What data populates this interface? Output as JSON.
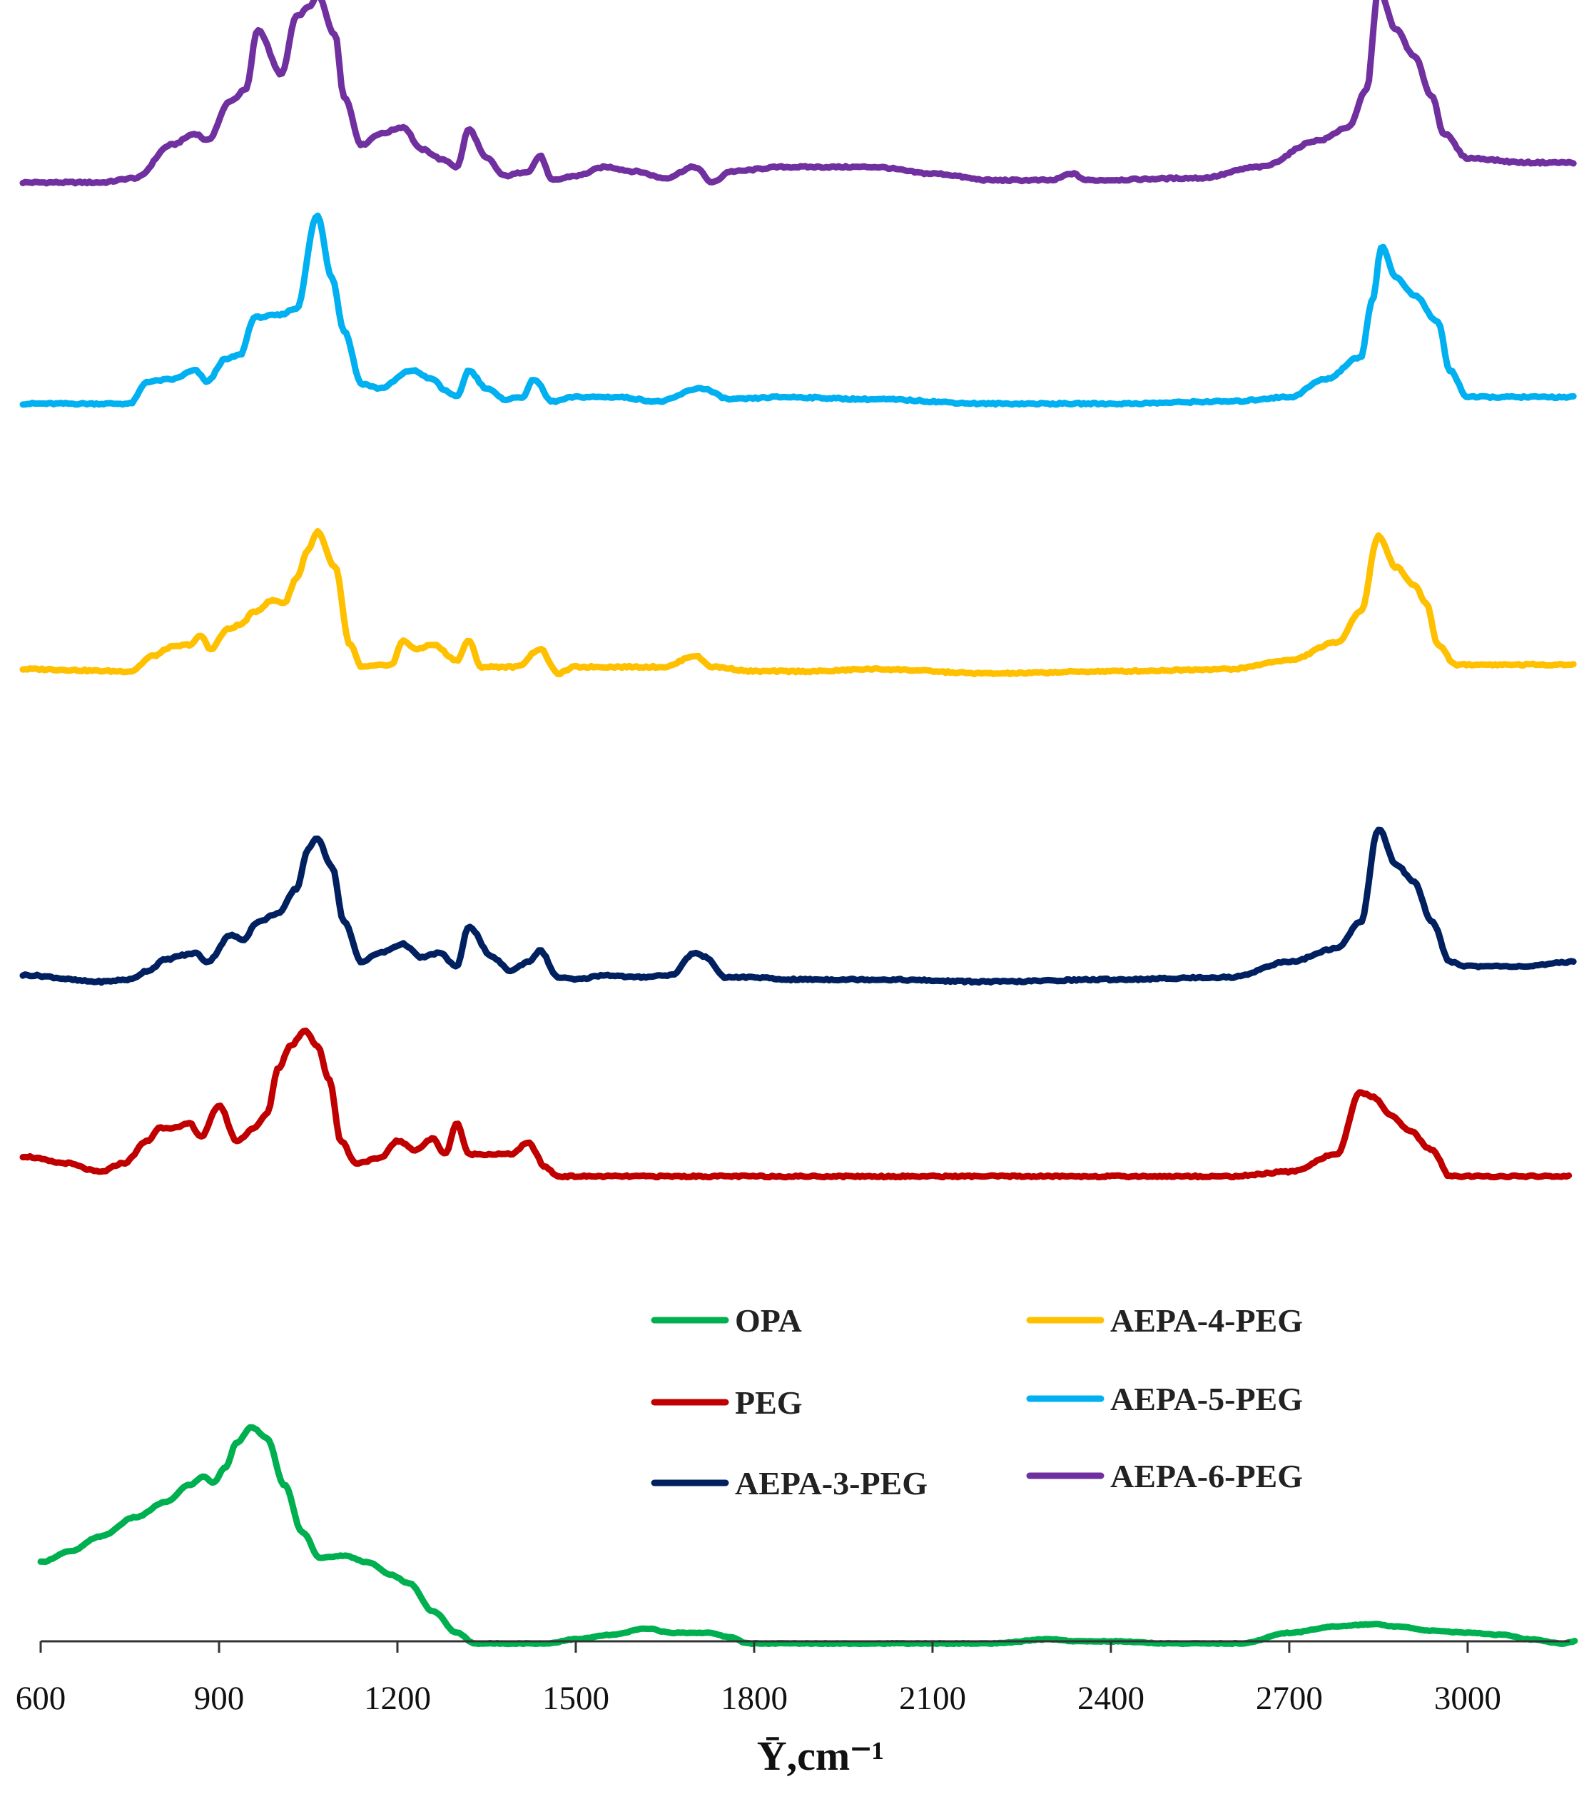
{
  "chart_data": {
    "type": "line",
    "title": "",
    "xlabel": "Ȳ,cm⁻¹",
    "ylabel": "",
    "xlim": [
      600,
      3180
    ],
    "x_ticks": [
      600,
      900,
      1200,
      1500,
      1800,
      2100,
      2400,
      2700,
      3000
    ],
    "x_tick_labels": [
      "600",
      "900",
      "1200",
      "1500",
      "1800",
      "2100",
      "2400",
      "2700",
      "3000"
    ],
    "y_axis": "stacked offset spectra, no scale",
    "legend": {
      "placement": "bottom-right",
      "entries": [
        "OPA",
        "PEG",
        "AEPA-3-PEG",
        "AEPA-4-PEG",
        "AEPA-5-PEG",
        "AEPA-6-PEG"
      ]
    },
    "series": [
      {
        "name": "AEPA-6-PEG",
        "color": "#7030A0",
        "offset": 5,
        "x_start": 570,
        "x_end": 3180,
        "points": [
          [
            570,
            0.03
          ],
          [
            700,
            0.03
          ],
          [
            760,
            0.05
          ],
          [
            820,
            0.2
          ],
          [
            860,
            0.25
          ],
          [
            880,
            0.22
          ],
          [
            920,
            0.4
          ],
          [
            945,
            0.45
          ],
          [
            965,
            0.72
          ],
          [
            1005,
            0.52
          ],
          [
            1030,
            0.78
          ],
          [
            1055,
            0.83
          ],
          [
            1065,
            0.88
          ],
          [
            1095,
            0.7
          ],
          [
            1110,
            0.42
          ],
          [
            1140,
            0.2
          ],
          [
            1170,
            0.25
          ],
          [
            1210,
            0.28
          ],
          [
            1240,
            0.18
          ],
          [
            1280,
            0.13
          ],
          [
            1300,
            0.1
          ],
          [
            1320,
            0.27
          ],
          [
            1350,
            0.14
          ],
          [
            1380,
            0.06
          ],
          [
            1420,
            0.08
          ],
          [
            1440,
            0.15
          ],
          [
            1460,
            0.04
          ],
          [
            1500,
            0.06
          ],
          [
            1550,
            0.1
          ],
          [
            1600,
            0.08
          ],
          [
            1650,
            0.05
          ],
          [
            1700,
            0.1
          ],
          [
            1730,
            0.03
          ],
          [
            1760,
            0.08
          ],
          [
            1850,
            0.1
          ],
          [
            2000,
            0.1
          ],
          [
            2100,
            0.07
          ],
          [
            2200,
            0.04
          ],
          [
            2300,
            0.04
          ],
          [
            2335,
            0.07
          ],
          [
            2360,
            0.04
          ],
          [
            2550,
            0.05
          ],
          [
            2650,
            0.1
          ],
          [
            2750,
            0.22
          ],
          [
            2800,
            0.28
          ],
          [
            2830,
            0.45
          ],
          [
            2850,
            0.9
          ],
          [
            2880,
            0.72
          ],
          [
            2910,
            0.6
          ],
          [
            2940,
            0.42
          ],
          [
            2960,
            0.25
          ],
          [
            3000,
            0.14
          ],
          [
            3100,
            0.12
          ],
          [
            3180,
            0.12
          ]
        ]
      },
      {
        "name": "AEPA-5-PEG",
        "color": "#00B0F0",
        "offset": 4,
        "x_start": 570,
        "x_end": 3180,
        "points": [
          [
            570,
            0.03
          ],
          [
            750,
            0.03
          ],
          [
            780,
            0.13
          ],
          [
            820,
            0.14
          ],
          [
            860,
            0.18
          ],
          [
            880,
            0.13
          ],
          [
            910,
            0.23
          ],
          [
            935,
            0.25
          ],
          [
            960,
            0.42
          ],
          [
            1000,
            0.43
          ],
          [
            1030,
            0.46
          ],
          [
            1065,
            0.88
          ],
          [
            1090,
            0.6
          ],
          [
            1110,
            0.36
          ],
          [
            1140,
            0.12
          ],
          [
            1170,
            0.1
          ],
          [
            1225,
            0.18
          ],
          [
            1260,
            0.14
          ],
          [
            1280,
            0.09
          ],
          [
            1300,
            0.06
          ],
          [
            1320,
            0.18
          ],
          [
            1350,
            0.1
          ],
          [
            1380,
            0.05
          ],
          [
            1410,
            0.06
          ],
          [
            1430,
            0.14
          ],
          [
            1460,
            0.04
          ],
          [
            1500,
            0.06
          ],
          [
            1570,
            0.06
          ],
          [
            1640,
            0.04
          ],
          [
            1710,
            0.1
          ],
          [
            1760,
            0.05
          ],
          [
            1850,
            0.06
          ],
          [
            2000,
            0.05
          ],
          [
            2200,
            0.03
          ],
          [
            2400,
            0.03
          ],
          [
            2600,
            0.04
          ],
          [
            2700,
            0.06
          ],
          [
            2760,
            0.14
          ],
          [
            2820,
            0.24
          ],
          [
            2840,
            0.5
          ],
          [
            2855,
            0.74
          ],
          [
            2880,
            0.6
          ],
          [
            2910,
            0.52
          ],
          [
            2950,
            0.4
          ],
          [
            2970,
            0.18
          ],
          [
            3000,
            0.06
          ],
          [
            3100,
            0.06
          ],
          [
            3180,
            0.06
          ]
        ]
      },
      {
        "name": "AEPA-4-PEG",
        "color": "#FFC000",
        "offset": 3,
        "x_start": 570,
        "x_end": 3180,
        "points": [
          [
            570,
            0.04
          ],
          [
            750,
            0.03
          ],
          [
            790,
            0.1
          ],
          [
            820,
            0.14
          ],
          [
            850,
            0.15
          ],
          [
            870,
            0.19
          ],
          [
            885,
            0.13
          ],
          [
            915,
            0.22
          ],
          [
            935,
            0.24
          ],
          [
            960,
            0.3
          ],
          [
            990,
            0.35
          ],
          [
            1010,
            0.34
          ],
          [
            1030,
            0.45
          ],
          [
            1050,
            0.58
          ],
          [
            1065,
            0.66
          ],
          [
            1095,
            0.5
          ],
          [
            1120,
            0.15
          ],
          [
            1140,
            0.05
          ],
          [
            1190,
            0.06
          ],
          [
            1210,
            0.17
          ],
          [
            1230,
            0.13
          ],
          [
            1260,
            0.15
          ],
          [
            1300,
            0.08
          ],
          [
            1320,
            0.17
          ],
          [
            1340,
            0.05
          ],
          [
            1400,
            0.05
          ],
          [
            1440,
            0.13
          ],
          [
            1470,
            0.02
          ],
          [
            1500,
            0.05
          ],
          [
            1650,
            0.05
          ],
          [
            1700,
            0.1
          ],
          [
            1730,
            0.05
          ],
          [
            1800,
            0.03
          ],
          [
            1900,
            0.03
          ],
          [
            2000,
            0.04
          ],
          [
            2200,
            0.02
          ],
          [
            2400,
            0.03
          ],
          [
            2600,
            0.04
          ],
          [
            2700,
            0.08
          ],
          [
            2780,
            0.16
          ],
          [
            2820,
            0.3
          ],
          [
            2850,
            0.64
          ],
          [
            2880,
            0.5
          ],
          [
            2910,
            0.42
          ],
          [
            2930,
            0.34
          ],
          [
            2950,
            0.15
          ],
          [
            2980,
            0.06
          ],
          [
            3100,
            0.06
          ],
          [
            3180,
            0.06
          ]
        ]
      },
      {
        "name": "AEPA-3-PEG",
        "color": "#002060",
        "offset": 2,
        "x_start": 570,
        "x_end": 3180,
        "points": [
          [
            570,
            0.06
          ],
          [
            700,
            0.03
          ],
          [
            750,
            0.04
          ],
          [
            780,
            0.08
          ],
          [
            810,
            0.13
          ],
          [
            840,
            0.15
          ],
          [
            860,
            0.16
          ],
          [
            880,
            0.12
          ],
          [
            920,
            0.24
          ],
          [
            940,
            0.22
          ],
          [
            965,
            0.3
          ],
          [
            1000,
            0.34
          ],
          [
            1030,
            0.45
          ],
          [
            1050,
            0.63
          ],
          [
            1065,
            0.68
          ],
          [
            1090,
            0.55
          ],
          [
            1110,
            0.3
          ],
          [
            1140,
            0.12
          ],
          [
            1170,
            0.16
          ],
          [
            1210,
            0.2
          ],
          [
            1240,
            0.14
          ],
          [
            1270,
            0.16
          ],
          [
            1300,
            0.1
          ],
          [
            1320,
            0.28
          ],
          [
            1360,
            0.14
          ],
          [
            1390,
            0.08
          ],
          [
            1420,
            0.12
          ],
          [
            1440,
            0.17
          ],
          [
            1470,
            0.05
          ],
          [
            1500,
            0.04
          ],
          [
            1550,
            0.06
          ],
          [
            1600,
            0.05
          ],
          [
            1660,
            0.06
          ],
          [
            1700,
            0.16
          ],
          [
            1720,
            0.14
          ],
          [
            1750,
            0.05
          ],
          [
            1800,
            0.05
          ],
          [
            1850,
            0.04
          ],
          [
            2000,
            0.04
          ],
          [
            2200,
            0.03
          ],
          [
            2400,
            0.04
          ],
          [
            2600,
            0.05
          ],
          [
            2700,
            0.12
          ],
          [
            2780,
            0.18
          ],
          [
            2820,
            0.3
          ],
          [
            2850,
            0.72
          ],
          [
            2880,
            0.56
          ],
          [
            2910,
            0.48
          ],
          [
            2940,
            0.3
          ],
          [
            2970,
            0.12
          ],
          [
            3000,
            0.1
          ],
          [
            3100,
            0.1
          ],
          [
            3180,
            0.12
          ]
        ]
      },
      {
        "name": "PEG",
        "color": "#C00000",
        "offset": 1,
        "x_start": 570,
        "x_end": 3170,
        "points": [
          [
            570,
            0.25
          ],
          [
            640,
            0.22
          ],
          [
            700,
            0.18
          ],
          [
            740,
            0.22
          ],
          [
            780,
            0.32
          ],
          [
            800,
            0.38
          ],
          [
            830,
            0.38
          ],
          [
            850,
            0.4
          ],
          [
            870,
            0.34
          ],
          [
            900,
            0.48
          ],
          [
            930,
            0.32
          ],
          [
            960,
            0.38
          ],
          [
            980,
            0.44
          ],
          [
            1000,
            0.65
          ],
          [
            1020,
            0.75
          ],
          [
            1045,
            0.82
          ],
          [
            1065,
            0.75
          ],
          [
            1085,
            0.6
          ],
          [
            1105,
            0.32
          ],
          [
            1130,
            0.22
          ],
          [
            1170,
            0.24
          ],
          [
            1200,
            0.32
          ],
          [
            1230,
            0.28
          ],
          [
            1260,
            0.33
          ],
          [
            1280,
            0.26
          ],
          [
            1300,
            0.4
          ],
          [
            1320,
            0.26
          ],
          [
            1390,
            0.26
          ],
          [
            1420,
            0.31
          ],
          [
            1450,
            0.2
          ],
          [
            1470,
            0.16
          ],
          [
            1600,
            0.16
          ],
          [
            1800,
            0.16
          ],
          [
            2000,
            0.16
          ],
          [
            2200,
            0.16
          ],
          [
            2400,
            0.16
          ],
          [
            2600,
            0.16
          ],
          [
            2700,
            0.18
          ],
          [
            2780,
            0.26
          ],
          [
            2820,
            0.54
          ],
          [
            2840,
            0.52
          ],
          [
            2870,
            0.44
          ],
          [
            2900,
            0.37
          ],
          [
            2940,
            0.28
          ],
          [
            2970,
            0.16
          ],
          [
            3100,
            0.16
          ],
          [
            3170,
            0.16
          ]
        ]
      },
      {
        "name": "OPA",
        "color": "#00B050",
        "offset": 0,
        "x_start": 600,
        "x_end": 3180,
        "points": [
          [
            600,
            0.38
          ],
          [
            650,
            0.43
          ],
          [
            700,
            0.5
          ],
          [
            760,
            0.59
          ],
          [
            810,
            0.66
          ],
          [
            850,
            0.74
          ],
          [
            875,
            0.78
          ],
          [
            890,
            0.75
          ],
          [
            910,
            0.82
          ],
          [
            930,
            0.94
          ],
          [
            955,
            1.01
          ],
          [
            980,
            0.96
          ],
          [
            1010,
            0.74
          ],
          [
            1040,
            0.52
          ],
          [
            1070,
            0.4
          ],
          [
            1110,
            0.41
          ],
          [
            1150,
            0.38
          ],
          [
            1190,
            0.32
          ],
          [
            1220,
            0.28
          ],
          [
            1260,
            0.15
          ],
          [
            1300,
            0.05
          ],
          [
            1330,
            0.0
          ],
          [
            1400,
            0.0
          ],
          [
            1450,
            0.0
          ],
          [
            1500,
            0.02
          ],
          [
            1560,
            0.04
          ],
          [
            1620,
            0.07
          ],
          [
            1660,
            0.05
          ],
          [
            1720,
            0.05
          ],
          [
            1760,
            0.03
          ],
          [
            1790,
            0.0
          ],
          [
            1900,
            0.0
          ],
          [
            2100,
            0.0
          ],
          [
            2200,
            0.0
          ],
          [
            2300,
            0.02
          ],
          [
            2340,
            0.01
          ],
          [
            2400,
            0.01
          ],
          [
            2500,
            0.0
          ],
          [
            2620,
            0.0
          ],
          [
            2700,
            0.05
          ],
          [
            2780,
            0.08
          ],
          [
            2840,
            0.09
          ],
          [
            2880,
            0.08
          ],
          [
            2940,
            0.06
          ],
          [
            3000,
            0.05
          ],
          [
            3060,
            0.04
          ],
          [
            3100,
            0.02
          ],
          [
            3160,
            0.0
          ],
          [
            3180,
            0.01
          ]
        ]
      }
    ]
  }
}
